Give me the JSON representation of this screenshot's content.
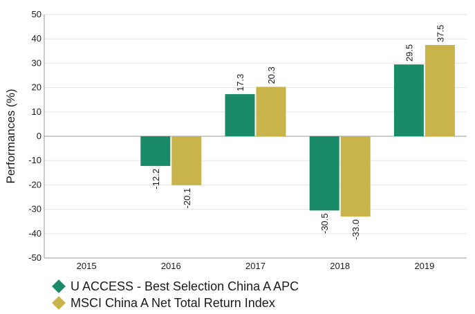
{
  "chart_data": {
    "type": "bar",
    "ylabel": "Performances (%)",
    "xlabel": "",
    "categories": [
      "2015",
      "2016",
      "2017",
      "2018",
      "2019"
    ],
    "ylim": [
      -50,
      50
    ],
    "yticks": [
      -50,
      -40,
      -30,
      -20,
      -10,
      0,
      10,
      20,
      30,
      40,
      50
    ],
    "grid": true,
    "legend_position": "bottom-left",
    "series": [
      {
        "name": "U ACCESS - Best Selection China A APC",
        "color": "#1a8a68",
        "values": [
          null,
          -12.2,
          17.3,
          -30.5,
          29.5
        ],
        "labels": [
          "",
          "-12.2",
          "17.3",
          "-30.5",
          "29.5"
        ]
      },
      {
        "name": "MSCI China A Net Total Return Index",
        "color": "#c8b44a",
        "values": [
          null,
          -20.1,
          20.3,
          -33.0,
          37.5
        ],
        "labels": [
          "",
          "-20.1",
          "20.3",
          "-33.0",
          "37.5"
        ]
      }
    ]
  }
}
